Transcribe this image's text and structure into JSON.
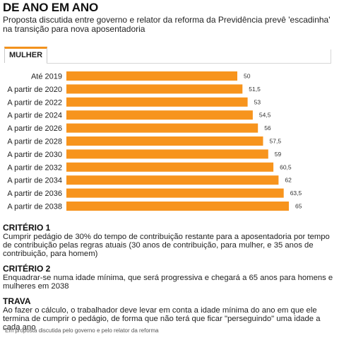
{
  "header": {
    "title": "DE ANO EM ANO",
    "subtitle": "Proposta discutida entre governo e relator da reforma da Previdência prevê 'escadinha' na transição para nova aposentadoria"
  },
  "tab": {
    "label": "MULHER"
  },
  "colors": {
    "bar": "#f7941d",
    "accent": "#f2921d"
  },
  "chart_data": {
    "type": "bar",
    "orientation": "horizontal",
    "categories": [
      "Até 2019",
      "A partir de 2020",
      "A partir de 2022",
      "A partir de 2024",
      "A partir de 2026",
      "A partir de 2028",
      "A partir de 2030",
      "A partir de 2032",
      "A partir de 2034",
      "A partir de 2036",
      "A partir de 2038"
    ],
    "values": [
      50,
      51.5,
      53,
      54.5,
      56,
      57.5,
      59,
      60.5,
      62,
      63.5,
      65
    ],
    "value_labels": [
      "50",
      "51,5",
      "53",
      "54,5",
      "56",
      "57,5",
      "59",
      "60,5",
      "62",
      "63,5",
      "65"
    ]
  },
  "sections": [
    {
      "title": "CRITÉRIO 1",
      "text": "Cumprir pedágio de 30% do tempo de contribuição restante para a aposentadoria por tempo de contribuição pelas regras atuais (30 anos de contribuição, para mulher, e 35 anos de contribuição, para homem)"
    },
    {
      "title": "CRITÉRIO 2",
      "text": "Enquadrar-se numa idade mínima, que será progressiva e chegará a 65 anos para homens e mulheres em 2038"
    },
    {
      "title": "TRAVA",
      "text": "Ao fazer o cálculo, o trabalhador deve levar em conta a idade mínima do ano em que ele termina de cumprir o pedágio, de forma que não terá que ficar \"perseguindo\" uma idade a cada ano"
    }
  ],
  "footnote": "*Em proposta discutida pelo governo e pelo relator da reforma"
}
